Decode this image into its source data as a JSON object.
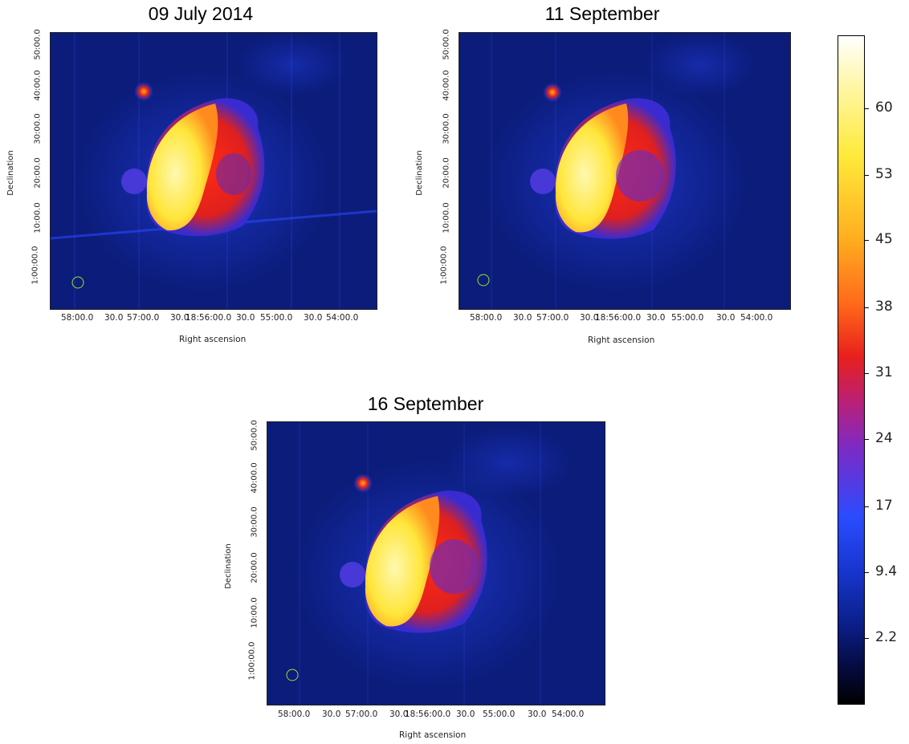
{
  "panels": [
    {
      "title": "09 July 2014",
      "y_ticks": [
        "50:00.0",
        "40:00.0",
        "30:00.0",
        "20:00.0",
        "10:00.0",
        "1:00:00.0"
      ],
      "x_ticks": [
        "58:00.0",
        "30.0",
        "57:00.0",
        "30.0",
        "18:56:00.0",
        "30.0",
        "55:00.0",
        "30.0",
        "54:00.0"
      ],
      "xlabel": "Right ascension",
      "ylabel": "Declination"
    },
    {
      "title": "11 September",
      "y_ticks": [
        "50:00.0",
        "40:00.0",
        "30:00.0",
        "20:00.0",
        "10:00.0",
        "1:00:00.0"
      ],
      "x_ticks": [
        "58:00.0",
        "30.0",
        "57:00.0",
        "30.0",
        "18:56:00.0",
        "30.0",
        "55:00.0",
        "30.0",
        "54:00.0"
      ],
      "xlabel": "Right ascension",
      "ylabel": "Declination"
    },
    {
      "title": "16 September",
      "y_ticks": [
        "50:00.0",
        "40:00.0",
        "30:00.0",
        "20:00.0",
        "10:00.0",
        "1:00:00.0"
      ],
      "x_ticks": [
        "58:00.0",
        "30.0",
        "57:00.0",
        "30.0",
        "18:56:00.0",
        "30.0",
        "55:00.0",
        "30.0",
        "54:00.0"
      ],
      "xlabel": "Right ascension",
      "ylabel": "Declination"
    }
  ],
  "colorbar": {
    "ticks": [
      "60",
      "53",
      "45",
      "38",
      "31",
      "24",
      "17",
      "9.4",
      "2.2"
    ]
  },
  "colors": {
    "background_map": "#0b1c7a",
    "hot": "#ffe45a",
    "warm": "#e8281c",
    "beam_circle": "#9be22e"
  }
}
